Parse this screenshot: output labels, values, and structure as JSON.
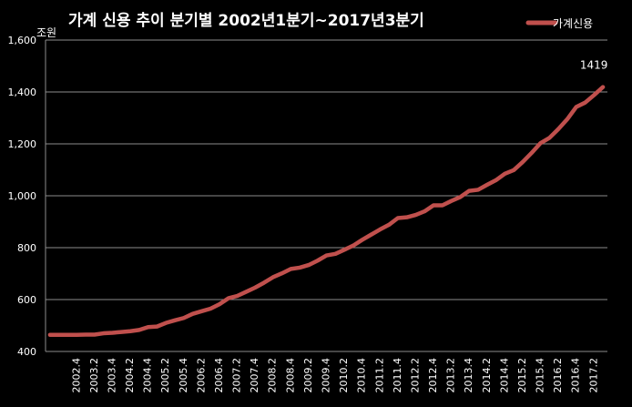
{
  "chart_data": {
    "type": "line",
    "title": "가계 신용 추이  분기별 2002년1분기~2017년3분기",
    "ylabel": "조원",
    "xlabel": "",
    "ylim": [
      400,
      1600
    ],
    "yticks": [
      400,
      600,
      800,
      1000,
      1200,
      1400,
      1600
    ],
    "ytick_labels": [
      "400",
      "600",
      "800",
      "1,000",
      "1,200",
      "1,400",
      "1,600"
    ],
    "grid": true,
    "legend": "top-right",
    "x": [
      "2002 1",
      "2002 2",
      "2002 3",
      "2002 4",
      "2003 1",
      "2003 2",
      "2003 3",
      "2003 4",
      "2004 1",
      "2004 2",
      "2004 3",
      "2004 4",
      "2005 1",
      "2005 2",
      "2005 3",
      "2005 4",
      "2006 1",
      "2006 2",
      "2006 3",
      "2006 4",
      "2007 1",
      "2007 2",
      "2007 3",
      "2007 4",
      "2008 1",
      "2008 2",
      "2008 3",
      "2008 4",
      "2009 1",
      "2009 2",
      "2009 3",
      "2009 4",
      "2010 1",
      "2010 2",
      "2010 3",
      "2010 4",
      "2011 1",
      "2011 2",
      "2011 3",
      "2011 4",
      "2012 1",
      "2012 2",
      "2012 3",
      "2012 4",
      "2013 1",
      "2013 2",
      "2013 3",
      "2013 4",
      "2014 1",
      "2014 2",
      "2014 3",
      "2014 4",
      "2015 1",
      "2015 2",
      "2015 3",
      "2015 4",
      "2016 1",
      "2016 2",
      "2016 3",
      "2016 4",
      "2017 1",
      "2017 2",
      "2017 3"
    ],
    "xtick_labels": [
      "2002.4",
      "2003.2",
      "2003.4",
      "2004.2",
      "2004.4",
      "2005.2",
      "2005.4",
      "2006.2",
      "2006.4",
      "2007.2",
      "2007.4",
      "2008.2",
      "2008.4",
      "2009.2",
      "2009.4",
      "2010.2",
      "2010.4",
      "2011.2",
      "2011.4",
      "2012.2",
      "2012.4",
      "2013.2",
      "2013.4",
      "2014.2",
      "2014.4",
      "2015.2",
      "2015.4",
      "2016.2",
      "2016.4",
      "2017.2"
    ],
    "series": [
      {
        "name": "가계신용",
        "color": "#c0504d",
        "values": [
          464,
          464,
          464,
          464,
          465,
          465,
          470,
          472,
          475,
          478,
          483,
          494,
          496,
          510,
          520,
          529,
          545,
          555,
          565,
          582,
          605,
          614,
          630,
          646,
          665,
          686,
          701,
          718,
          723,
          733,
          750,
          770,
          776,
          792,
          808,
          830,
          850,
          870,
          888,
          914,
          917,
          926,
          940,
          963,
          963,
          980,
          995,
          1019,
          1023,
          1042,
          1060,
          1085,
          1099,
          1130,
          1165,
          1203,
          1223,
          1257,
          1295,
          1342,
          1359,
          1388,
          1419
        ]
      }
    ],
    "annotations": [
      {
        "text": "1419",
        "x": "2017 3",
        "y": 1419
      }
    ]
  }
}
